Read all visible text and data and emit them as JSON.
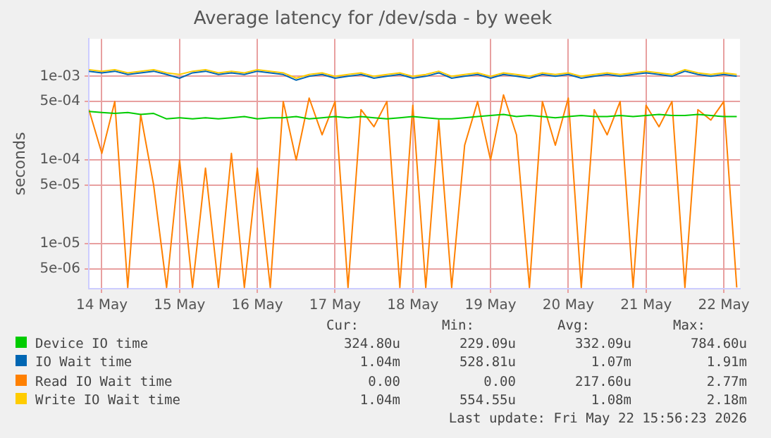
{
  "chart_data": {
    "type": "line",
    "title": "Average latency for /dev/sda - by week",
    "ylabel": "seconds",
    "log": "y",
    "grid": true,
    "legend": "bottom",
    "marker": "none",
    "line_style": "solid",
    "x": [
      "2026-05-14T08:00",
      "2026-05-14T12:00",
      "2026-05-14T16:00",
      "2026-05-14T20:00",
      "2026-05-15T00:00",
      "2026-05-15T04:00",
      "2026-05-15T08:00",
      "2026-05-15T12:00",
      "2026-05-15T16:00",
      "2026-05-15T20:00",
      "2026-05-16T00:00",
      "2026-05-16T04:00",
      "2026-05-16T08:00",
      "2026-05-16T12:00",
      "2026-05-16T16:00",
      "2026-05-16T20:00",
      "2026-05-17T00:00",
      "2026-05-17T04:00",
      "2026-05-17T08:00",
      "2026-05-17T12:00",
      "2026-05-17T16:00",
      "2026-05-17T20:00",
      "2026-05-18T00:00",
      "2026-05-18T04:00",
      "2026-05-18T08:00",
      "2026-05-18T12:00",
      "2026-05-18T16:00",
      "2026-05-18T20:00",
      "2026-05-19T00:00",
      "2026-05-19T04:00",
      "2026-05-19T08:00",
      "2026-05-19T12:00",
      "2026-05-19T16:00",
      "2026-05-19T20:00",
      "2026-05-20T00:00",
      "2026-05-20T04:00",
      "2026-05-20T08:00",
      "2026-05-20T12:00",
      "2026-05-20T16:00",
      "2026-05-20T20:00",
      "2026-05-21T00:00",
      "2026-05-21T04:00",
      "2026-05-21T08:00",
      "2026-05-21T12:00",
      "2026-05-21T16:00",
      "2026-05-21T20:00",
      "2026-05-22T00:00",
      "2026-05-22T04:00",
      "2026-05-22T08:00",
      "2026-05-22T12:00",
      "2026-05-22T16:00"
    ],
    "series": [
      {
        "name": "Device IO time",
        "color": "#00cc00",
        "values": [
          0.00038,
          0.00037,
          0.00036,
          0.00037,
          0.00035,
          0.00036,
          0.00031,
          0.00032,
          0.00031,
          0.00032,
          0.00031,
          0.00032,
          0.00033,
          0.00031,
          0.00032,
          0.00032,
          0.00033,
          0.00031,
          0.00032,
          0.00033,
          0.00032,
          0.00033,
          0.00032,
          0.00031,
          0.00032,
          0.00033,
          0.00032,
          0.00031,
          0.00031,
          0.00032,
          0.00033,
          0.00034,
          0.00035,
          0.00033,
          0.00034,
          0.00033,
          0.00032,
          0.00033,
          0.00034,
          0.00033,
          0.00033,
          0.00034,
          0.00033,
          0.00034,
          0.00035,
          0.00034,
          0.00034,
          0.00035,
          0.00034,
          0.00033,
          0.00033
        ]
      },
      {
        "name": "IO Wait time",
        "color": "#0066b3",
        "values": [
          0.00115,
          0.0011,
          0.00115,
          0.00105,
          0.0011,
          0.00115,
          0.00105,
          0.00095,
          0.0011,
          0.00115,
          0.00105,
          0.0011,
          0.00105,
          0.00115,
          0.0011,
          0.00105,
          0.0009,
          0.001,
          0.00105,
          0.00095,
          0.001,
          0.00105,
          0.00095,
          0.001,
          0.00105,
          0.00095,
          0.001,
          0.0011,
          0.00095,
          0.001,
          0.00105,
          0.00095,
          0.00105,
          0.001,
          0.00095,
          0.00105,
          0.001,
          0.00105,
          0.00095,
          0.001,
          0.00105,
          0.001,
          0.00105,
          0.0011,
          0.00105,
          0.001,
          0.00115,
          0.00105,
          0.001,
          0.00105,
          0.001
        ]
      },
      {
        "name": "Read IO Wait time",
        "color": "#ff8000",
        "values": [
          0.0004,
          0.00012,
          0.0005,
          3e-06,
          0.00035,
          5e-05,
          3e-06,
          0.0001,
          3e-06,
          8e-05,
          3e-06,
          0.00012,
          3e-06,
          8e-05,
          3e-06,
          0.0005,
          0.0001,
          0.00055,
          0.0002,
          0.0005,
          3e-06,
          0.0004,
          0.00025,
          0.0005,
          3e-06,
          0.00045,
          3e-06,
          0.0003,
          3e-06,
          0.00015,
          0.0005,
          0.0001,
          0.0006,
          0.0002,
          3e-06,
          0.0005,
          0.00015,
          0.00055,
          3e-06,
          0.0004,
          0.0002,
          0.0005,
          3e-06,
          0.00045,
          0.00025,
          0.0005,
          3e-06,
          0.0004,
          0.0003,
          0.0005,
          3e-06
        ]
      },
      {
        "name": "Write IO Wait time",
        "color": "#ffcc00",
        "values": [
          0.0012,
          0.00115,
          0.0012,
          0.0011,
          0.00115,
          0.0012,
          0.0011,
          0.00105,
          0.00115,
          0.0012,
          0.0011,
          0.00115,
          0.0011,
          0.0012,
          0.00115,
          0.0011,
          0.00095,
          0.00105,
          0.0011,
          0.001,
          0.00105,
          0.0011,
          0.001,
          0.00105,
          0.0011,
          0.001,
          0.00105,
          0.00115,
          0.001,
          0.00105,
          0.0011,
          0.001,
          0.0011,
          0.00105,
          0.001,
          0.0011,
          0.00105,
          0.0011,
          0.001,
          0.00105,
          0.0011,
          0.00105,
          0.0011,
          0.00115,
          0.0011,
          0.00105,
          0.0012,
          0.0011,
          0.00105,
          0.0011,
          0.00105
        ]
      }
    ],
    "xlim": [
      "2026-05-14T08:00",
      "2026-05-22T17:00"
    ],
    "xticks": [
      {
        "value": "2026-05-14T12:00",
        "label": "14 May"
      },
      {
        "value": "2026-05-15T12:00",
        "label": "15 May"
      },
      {
        "value": "2026-05-16T12:00",
        "label": "16 May"
      },
      {
        "value": "2026-05-17T12:00",
        "label": "17 May"
      },
      {
        "value": "2026-05-18T12:00",
        "label": "18 May"
      },
      {
        "value": "2026-05-19T12:00",
        "label": "19 May"
      },
      {
        "value": "2026-05-20T12:00",
        "label": "20 May"
      },
      {
        "value": "2026-05-21T12:00",
        "label": "21 May"
      },
      {
        "value": "2026-05-22T12:00",
        "label": "22 May"
      }
    ],
    "ylim": [
      2.9e-06,
      0.0028
    ],
    "yticks": [
      {
        "value": 5e-06,
        "label": "5e-06"
      },
      {
        "value": 1e-05,
        "label": "1e-05"
      },
      {
        "value": 5e-05,
        "label": "5e-05"
      },
      {
        "value": 0.0001,
        "label": "1e-04"
      },
      {
        "value": 0.0005,
        "label": "5e-04"
      },
      {
        "value": 0.001,
        "label": "1e-03"
      }
    ],
    "annotations": [
      "Cur:",
      "Min:",
      "Avg:",
      "Max:",
      "324.80u",
      "229.09u",
      "332.09u",
      "784.60u",
      "1.04m",
      "528.81u",
      "1.07m",
      "1.91m",
      "0.00",
      "0.00",
      "217.60u",
      "2.77m",
      "1.04m",
      "554.55u",
      "1.08m",
      "2.18m",
      "Last update: Fri May 22 15:56:23 2026"
    ]
  }
}
